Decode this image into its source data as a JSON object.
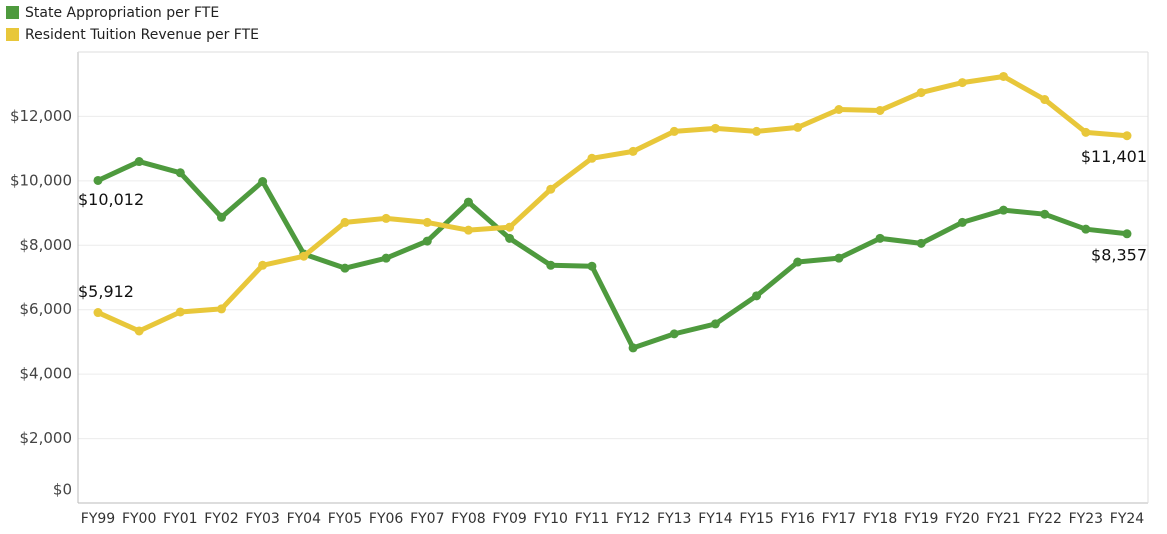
{
  "chart_data": {
    "type": "line",
    "categories": [
      "FY99",
      "FY00",
      "FY01",
      "FY02",
      "FY03",
      "FY04",
      "FY05",
      "FY06",
      "FY07",
      "FY08",
      "FY09",
      "FY10",
      "FY11",
      "FY12",
      "FY13",
      "FY14",
      "FY15",
      "FY16",
      "FY17",
      "FY18",
      "FY19",
      "FY20",
      "FY21",
      "FY22",
      "FY23",
      "FY24"
    ],
    "series": [
      {
        "name": "State Appropriation per FTE",
        "color": "#4e9a3e",
        "values": [
          10012,
          10600,
          10250,
          8870,
          9980,
          7730,
          7290,
          7600,
          8130,
          9340,
          8215,
          7380,
          7350,
          4815,
          5250,
          5560,
          6430,
          7480,
          7600,
          8215,
          8060,
          8710,
          9090,
          8965,
          8500,
          8357
        ],
        "value_labels": [
          "$10,012",
          null,
          null,
          null,
          null,
          null,
          null,
          null,
          null,
          null,
          null,
          null,
          null,
          null,
          null,
          null,
          null,
          null,
          null,
          null,
          null,
          null,
          null,
          null,
          null,
          "$8,357"
        ]
      },
      {
        "name": "Resident Tuition Revenue per FTE",
        "color": "#e8c73a",
        "values": [
          5912,
          5340,
          5930,
          6025,
          7380,
          7660,
          8710,
          8835,
          8710,
          8470,
          8560,
          9740,
          10700,
          10915,
          11535,
          11630,
          11535,
          11660,
          12215,
          12185,
          12740,
          13050,
          13240,
          12525,
          11505,
          11401
        ],
        "value_labels": [
          "$5,912",
          null,
          null,
          null,
          null,
          null,
          null,
          null,
          null,
          null,
          null,
          null,
          null,
          null,
          null,
          null,
          null,
          null,
          null,
          null,
          null,
          null,
          null,
          null,
          null,
          "$11,401"
        ]
      }
    ],
    "ylim": [
      0,
      14000
    ],
    "yticks": [
      {
        "value": 0,
        "label": "$0"
      },
      {
        "value": 2000,
        "label": "$2,000"
      },
      {
        "value": 4000,
        "label": "$4,000"
      },
      {
        "value": 6000,
        "label": "$6,000"
      },
      {
        "value": 8000,
        "label": "$8,000"
      },
      {
        "value": 10000,
        "label": "$10,000"
      },
      {
        "value": 12000,
        "label": "$12,000"
      }
    ],
    "grid": true,
    "legend": "top-left"
  }
}
